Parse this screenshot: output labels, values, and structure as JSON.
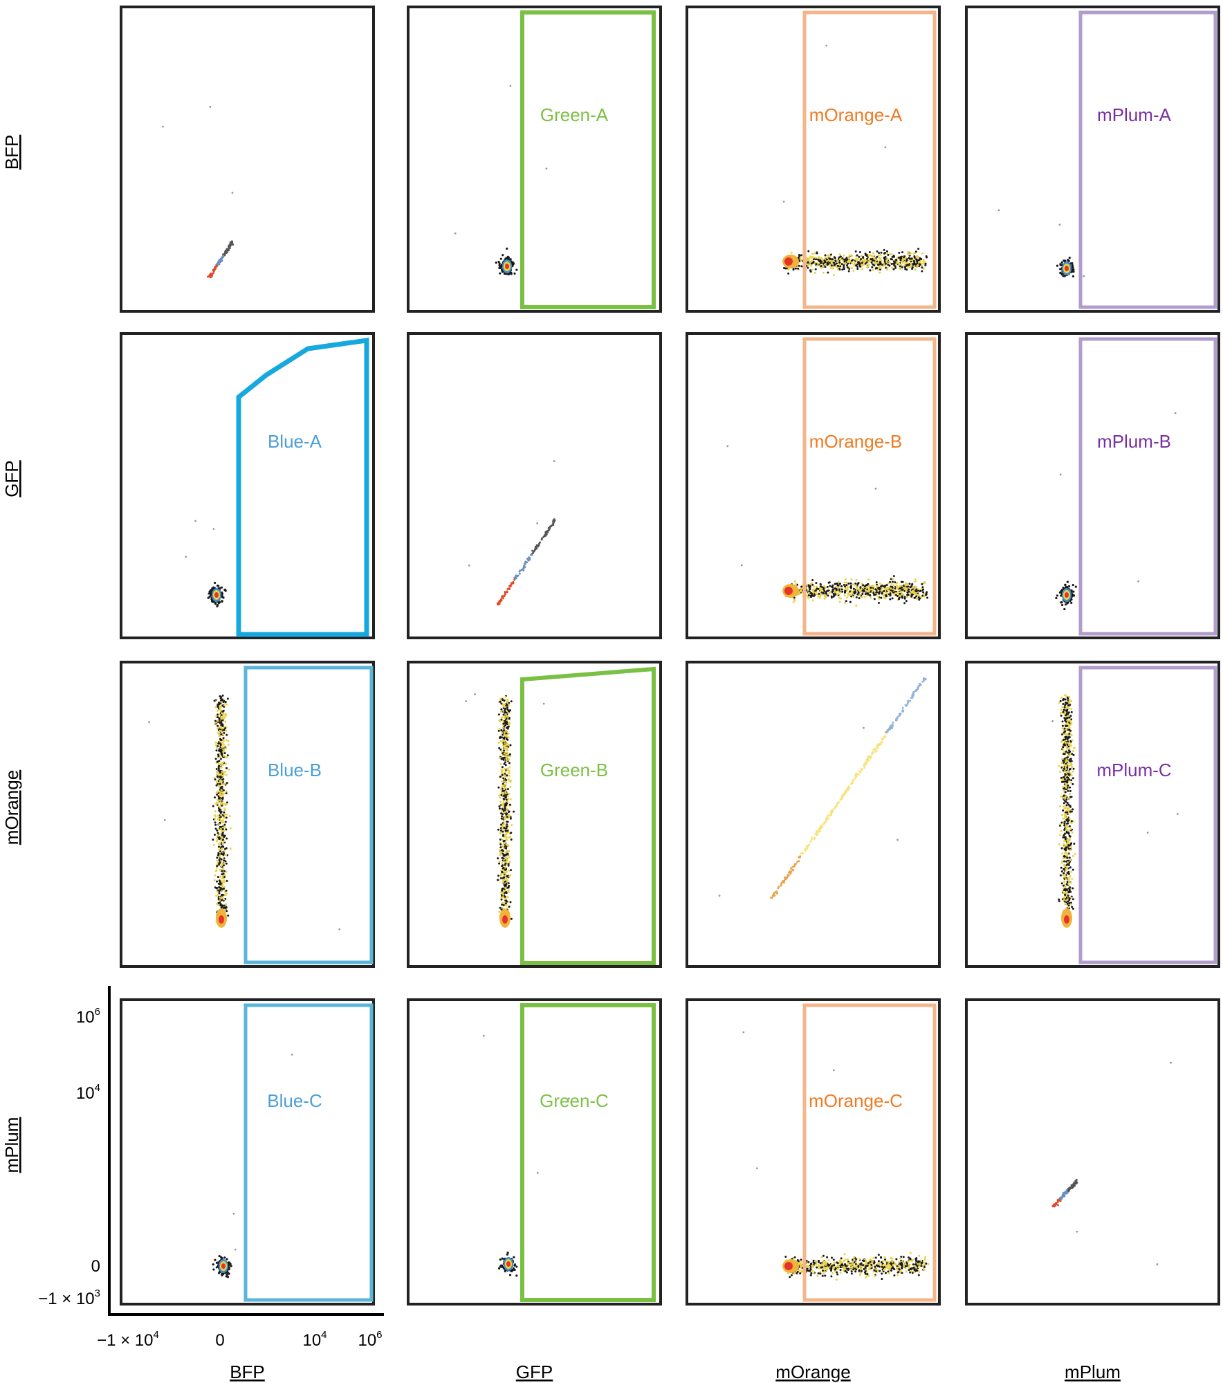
{
  "chart_data": {
    "type": "scatter",
    "channels": [
      "BFP",
      "GFP",
      "mOrange",
      "mPlum"
    ],
    "column_labels": [
      "BFP",
      "GFP",
      "mOrange",
      "mPlum"
    ],
    "row_labels": [
      "BFP",
      "GFP",
      "mOrange",
      "mPlum"
    ],
    "x_ticks": [
      {
        "base": "−1 × 10",
        "exp": "4"
      },
      {
        "base": "0",
        "exp": ""
      },
      {
        "base": "10",
        "exp": "4"
      },
      {
        "base": "10",
        "exp": "6"
      }
    ],
    "y_ticks": [
      {
        "base": "10",
        "exp": "6"
      },
      {
        "base": "10",
        "exp": "4"
      },
      {
        "base": "0",
        "exp": ""
      },
      {
        "base": "−1 × 10",
        "exp": "3"
      }
    ],
    "gates": [
      {
        "row": 0,
        "col": 1,
        "name": "Green-A",
        "color": "#7ac143",
        "shape": "rect"
      },
      {
        "row": 0,
        "col": 2,
        "name": "mOrange-A",
        "color": "#f5b58a",
        "shape": "rect"
      },
      {
        "row": 0,
        "col": 3,
        "name": "mPlum-A",
        "color": "#b29ccb",
        "shape": "rect"
      },
      {
        "row": 1,
        "col": 0,
        "name": "Blue-A",
        "color": "#18a8e0",
        "shape": "polygon"
      },
      {
        "row": 1,
        "col": 2,
        "name": "mOrange-B",
        "color": "#f5b58a",
        "shape": "rect"
      },
      {
        "row": 1,
        "col": 3,
        "name": "mPlum-B",
        "color": "#b29ccb",
        "shape": "rect"
      },
      {
        "row": 2,
        "col": 0,
        "name": "Blue-B",
        "color": "#5bb5d8",
        "shape": "rect"
      },
      {
        "row": 2,
        "col": 1,
        "name": "Green-B",
        "color": "#7ac143",
        "shape": "polygon"
      },
      {
        "row": 2,
        "col": 3,
        "name": "mPlum-C",
        "color": "#b29ccb",
        "shape": "rect"
      },
      {
        "row": 3,
        "col": 0,
        "name": "Blue-C",
        "color": "#5bb5d8",
        "shape": "rect"
      },
      {
        "row": 3,
        "col": 1,
        "name": "Green-C",
        "color": "#7ac143",
        "shape": "rect"
      },
      {
        "row": 3,
        "col": 2,
        "name": "mOrange-C",
        "color": "#f5b58a",
        "shape": "rect"
      }
    ],
    "label_colors": {
      "Blue": "#4a9fd8",
      "Green": "#7ac143",
      "mOrange": "#f07a22",
      "mPlum": "#7a2fa0"
    },
    "populations": [
      {
        "row": 0,
        "col": 0,
        "kind": "diagonal"
      },
      {
        "row": 0,
        "col": 1,
        "kind": "blob"
      },
      {
        "row": 0,
        "col": 2,
        "kind": "horizontal"
      },
      {
        "row": 0,
        "col": 3,
        "kind": "blob"
      },
      {
        "row": 1,
        "col": 0,
        "kind": "blob"
      },
      {
        "row": 1,
        "col": 1,
        "kind": "diagonal"
      },
      {
        "row": 1,
        "col": 2,
        "kind": "horizontal"
      },
      {
        "row": 1,
        "col": 3,
        "kind": "blob"
      },
      {
        "row": 2,
        "col": 0,
        "kind": "vertical"
      },
      {
        "row": 2,
        "col": 1,
        "kind": "vertical"
      },
      {
        "row": 2,
        "col": 2,
        "kind": "diagonal"
      },
      {
        "row": 2,
        "col": 3,
        "kind": "vertical"
      },
      {
        "row": 3,
        "col": 0,
        "kind": "blob"
      },
      {
        "row": 3,
        "col": 1,
        "kind": "blob"
      },
      {
        "row": 3,
        "col": 2,
        "kind": "horizontal"
      },
      {
        "row": 3,
        "col": 3,
        "kind": "diagonal"
      }
    ]
  }
}
